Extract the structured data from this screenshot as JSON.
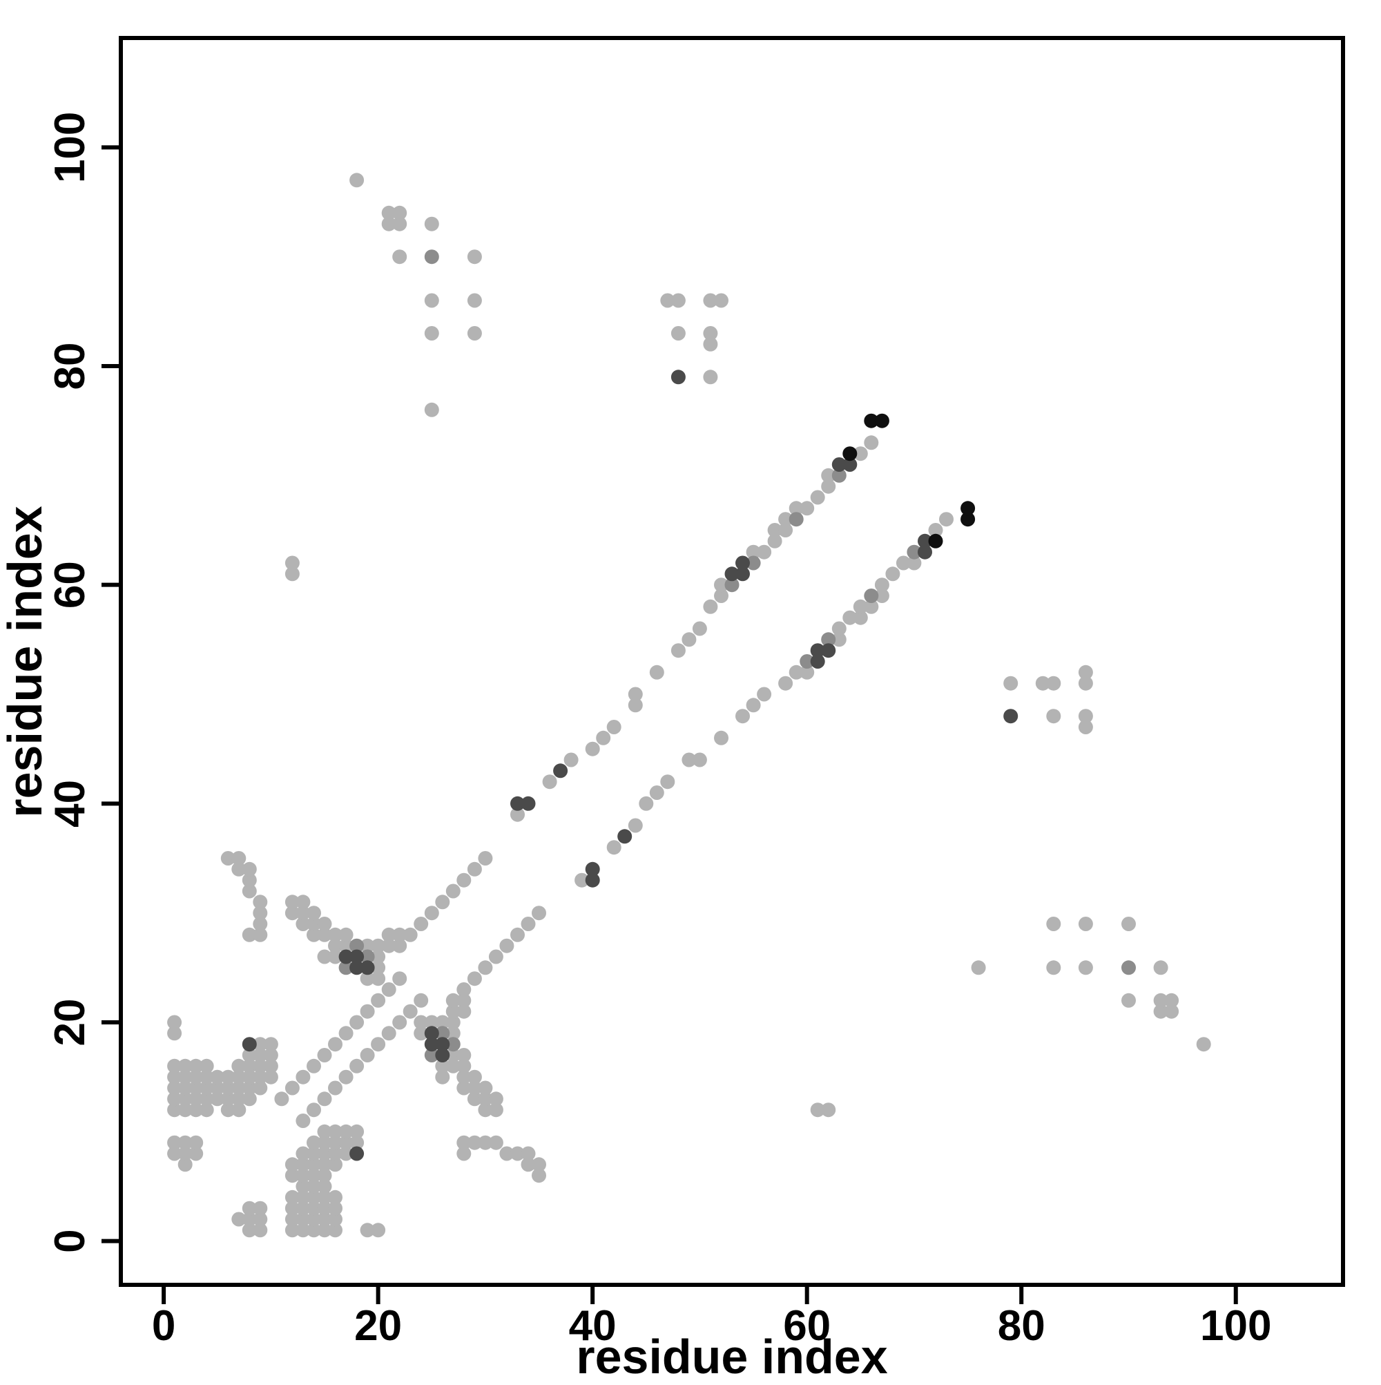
{
  "chart_data": {
    "type": "scatter",
    "title": "",
    "xlabel": "residue index",
    "ylabel": "residue index",
    "xlim": [
      -4,
      110
    ],
    "ylim": [
      -4,
      110
    ],
    "xticks": [
      0,
      20,
      40,
      60,
      80,
      100
    ],
    "yticks": [
      0,
      20,
      40,
      60,
      80,
      100
    ],
    "grid": false,
    "legend": "none",
    "symmetric": true,
    "marker": {
      "shape": "circle",
      "radius": 10.5
    },
    "shade_colors": {
      "l": "#b3b3b3",
      "m": "#8c8c8c",
      "d": "#4a4a4a",
      "k": "#0f0f0f"
    },
    "pairs": [
      [
        1,
        8
      ],
      [
        1,
        9
      ],
      [
        1,
        12
      ],
      [
        1,
        13
      ],
      [
        1,
        14
      ],
      [
        1,
        15
      ],
      [
        1,
        16
      ],
      [
        1,
        19
      ],
      [
        1,
        20
      ],
      [
        2,
        7
      ],
      [
        2,
        8
      ],
      [
        2,
        9
      ],
      [
        2,
        12
      ],
      [
        2,
        13
      ],
      [
        2,
        14
      ],
      [
        2,
        15
      ],
      [
        2,
        16
      ],
      [
        3,
        8
      ],
      [
        3,
        9
      ],
      [
        3,
        12
      ],
      [
        3,
        13
      ],
      [
        3,
        14
      ],
      [
        3,
        15
      ],
      [
        3,
        16
      ],
      [
        4,
        12
      ],
      [
        4,
        13
      ],
      [
        4,
        14
      ],
      [
        4,
        15
      ],
      [
        4,
        16
      ],
      [
        5,
        13
      ],
      [
        5,
        14
      ],
      [
        5,
        15
      ],
      [
        6,
        12
      ],
      [
        6,
        13
      ],
      [
        6,
        14
      ],
      [
        6,
        15
      ],
      [
        7,
        12
      ],
      [
        7,
        13
      ],
      [
        7,
        14
      ],
      [
        7,
        15
      ],
      [
        7,
        16
      ],
      [
        8,
        13
      ],
      [
        8,
        14
      ],
      [
        8,
        15
      ],
      [
        8,
        16
      ],
      [
        8,
        17
      ],
      [
        8,
        18,
        "d"
      ],
      [
        9,
        14
      ],
      [
        9,
        15
      ],
      [
        9,
        16
      ],
      [
        9,
        17
      ],
      [
        9,
        18
      ],
      [
        10,
        15
      ],
      [
        10,
        16
      ],
      [
        10,
        17
      ],
      [
        10,
        18
      ],
      [
        6,
        35
      ],
      [
        7,
        34
      ],
      [
        7,
        35
      ],
      [
        8,
        28
      ],
      [
        8,
        32
      ],
      [
        8,
        33
      ],
      [
        8,
        34
      ],
      [
        9,
        28
      ],
      [
        9,
        29
      ],
      [
        9,
        30
      ],
      [
        9,
        31
      ],
      [
        12,
        30
      ],
      [
        12,
        31
      ],
      [
        13,
        29
      ],
      [
        13,
        30
      ],
      [
        13,
        31
      ],
      [
        14,
        28
      ],
      [
        14,
        29
      ],
      [
        14,
        30
      ],
      [
        15,
        28
      ],
      [
        15,
        29
      ],
      [
        16,
        27
      ],
      [
        16,
        28
      ],
      [
        17,
        27
      ],
      [
        17,
        28
      ],
      [
        15,
        26
      ],
      [
        16,
        26
      ],
      [
        17,
        25,
        "m"
      ],
      [
        17,
        26,
        "d"
      ],
      [
        18,
        25,
        "d"
      ],
      [
        18,
        26,
        "d"
      ],
      [
        18,
        27,
        "m"
      ],
      [
        19,
        24
      ],
      [
        19,
        25,
        "d"
      ],
      [
        19,
        26,
        "m"
      ],
      [
        19,
        27
      ],
      [
        20,
        24
      ],
      [
        20,
        25
      ],
      [
        20,
        26
      ],
      [
        20,
        27
      ],
      [
        21,
        27
      ],
      [
        21,
        28
      ],
      [
        22,
        27
      ],
      [
        22,
        28
      ],
      [
        11,
        13
      ],
      [
        12,
        14
      ],
      [
        13,
        15
      ],
      [
        14,
        16
      ],
      [
        15,
        17
      ],
      [
        16,
        18
      ],
      [
        17,
        19
      ],
      [
        18,
        20
      ],
      [
        19,
        21
      ],
      [
        20,
        22
      ],
      [
        21,
        23
      ],
      [
        22,
        24
      ],
      [
        23,
        28
      ],
      [
        24,
        29
      ],
      [
        25,
        30
      ],
      [
        26,
        31
      ],
      [
        27,
        32
      ],
      [
        28,
        33
      ],
      [
        29,
        34
      ],
      [
        30,
        35
      ],
      [
        33,
        39
      ],
      [
        33,
        40,
        "d"
      ],
      [
        34,
        40,
        "d"
      ],
      [
        36,
        42
      ],
      [
        37,
        43,
        "d"
      ],
      [
        38,
        44
      ],
      [
        40,
        45
      ],
      [
        41,
        46
      ],
      [
        42,
        47
      ],
      [
        44,
        49
      ],
      [
        44,
        50
      ],
      [
        46,
        52
      ],
      [
        48,
        54
      ],
      [
        49,
        55
      ],
      [
        50,
        56
      ],
      [
        51,
        58
      ],
      [
        52,
        59
      ],
      [
        52,
        60
      ],
      [
        53,
        60,
        "m"
      ],
      [
        53,
        61,
        "d"
      ],
      [
        54,
        61,
        "d"
      ],
      [
        54,
        62,
        "d"
      ],
      [
        55,
        62,
        "m"
      ],
      [
        55,
        63
      ],
      [
        56,
        63
      ],
      [
        57,
        64
      ],
      [
        57,
        65
      ],
      [
        58,
        65
      ],
      [
        58,
        66
      ],
      [
        59,
        66,
        "m"
      ],
      [
        59,
        67
      ],
      [
        60,
        67
      ],
      [
        61,
        68
      ],
      [
        62,
        69
      ],
      [
        62,
        70
      ],
      [
        63,
        70,
        "m"
      ],
      [
        63,
        71,
        "d"
      ],
      [
        64,
        71,
        "d"
      ],
      [
        64,
        72,
        "k"
      ],
      [
        65,
        72
      ],
      [
        66,
        73
      ],
      [
        66,
        75,
        "k"
      ],
      [
        67,
        75,
        "k"
      ],
      [
        18,
        97
      ],
      [
        21,
        93
      ],
      [
        21,
        94
      ],
      [
        22,
        93
      ],
      [
        22,
        94
      ],
      [
        25,
        93
      ],
      [
        22,
        90
      ],
      [
        25,
        90,
        "m"
      ],
      [
        29,
        90
      ],
      [
        25,
        86
      ],
      [
        29,
        86
      ],
      [
        25,
        83
      ],
      [
        29,
        83
      ],
      [
        25,
        76
      ],
      [
        12,
        61
      ],
      [
        12,
        62
      ],
      [
        47,
        86
      ],
      [
        48,
        86
      ],
      [
        51,
        86
      ],
      [
        52,
        86
      ],
      [
        48,
        83
      ],
      [
        51,
        82
      ],
      [
        51,
        83
      ],
      [
        48,
        79,
        "d"
      ],
      [
        51,
        79
      ]
    ]
  }
}
